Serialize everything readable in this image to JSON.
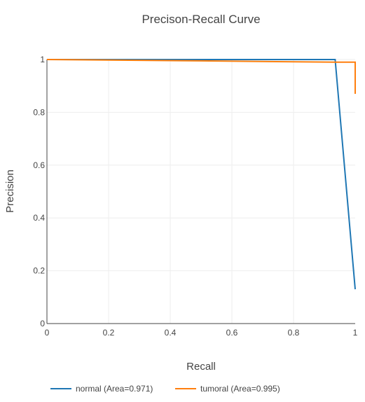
{
  "chart_data": {
    "type": "line",
    "title": "Precison-Recall Curve",
    "xlabel": "Recall",
    "ylabel": "Precision",
    "xlim": [
      0,
      1
    ],
    "ylim": [
      0,
      1
    ],
    "grid": true,
    "legend_position": "bottom",
    "x_ticks": [
      "0",
      "0.2",
      "0.4",
      "0.6",
      "0.8",
      "1"
    ],
    "y_ticks": [
      "0",
      "0.2",
      "0.4",
      "0.6",
      "0.8",
      "1"
    ],
    "series": [
      {
        "name": "normal (Area=0.971)",
        "color": "#1f77b4",
        "x": [
          0,
          0.935,
          1
        ],
        "y": [
          1,
          1,
          0.13
        ]
      },
      {
        "name": "tumoral (Area=0.995)",
        "color": "#ff7f0e",
        "x": [
          0,
          0.5,
          0.935,
          1,
          1
        ],
        "y": [
          1,
          0.995,
          0.99,
          0.99,
          0.87
        ]
      }
    ]
  }
}
